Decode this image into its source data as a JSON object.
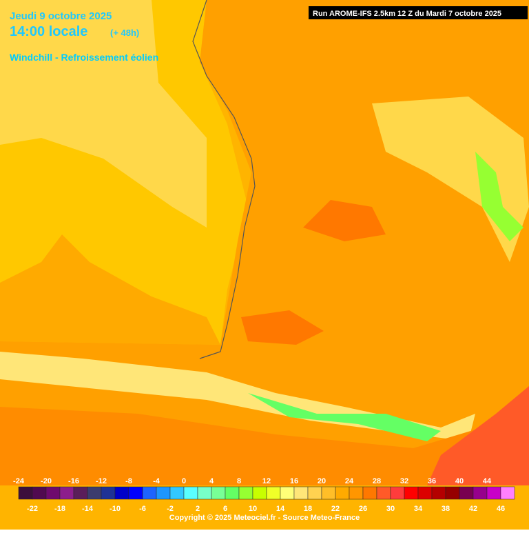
{
  "header": {
    "date": "Jeudi 9 octobre 2025",
    "time": "14:00 locale",
    "lead": "(+ 48h)",
    "subtitle": "Windchill - Refroissement éolien"
  },
  "run": "Run AROME-IFS 2.5km 12 Z du Mardi 7 octobre 2025",
  "legend": {
    "values": [
      -24,
      -22,
      -20,
      -18,
      -16,
      -14,
      -12,
      -10,
      -8,
      -6,
      -4,
      -2,
      0,
      2,
      4,
      6,
      8,
      10,
      12,
      14,
      16,
      18,
      20,
      22,
      24,
      26,
      28,
      30,
      32,
      34,
      36,
      38,
      40,
      42,
      44,
      46
    ],
    "colors": [
      "#3c0f3c",
      "#500a50",
      "#6e0a6e",
      "#8c1e8c",
      "#5a1e5a",
      "#3c3c6e",
      "#1e3296",
      "#0000c8",
      "#0000ff",
      "#1e64ff",
      "#1e96ff",
      "#32c8ff",
      "#5affff",
      "#78ffc8",
      "#78ff96",
      "#64ff64",
      "#96ff32",
      "#c8ff00",
      "#f0ff28",
      "#ffff78",
      "#ffe678",
      "#ffd250",
      "#ffbe28",
      "#ffaa00",
      "#ff9600",
      "#ff7800",
      "#ff5a28",
      "#ff3c3c",
      "#ff0000",
      "#dc0000",
      "#b40000",
      "#960000",
      "#780050",
      "#96008c",
      "#c800c8",
      "#ff80ff"
    ]
  },
  "footer": "Copyright © 2025 Meteociel.fr - Source Meteo-France"
}
